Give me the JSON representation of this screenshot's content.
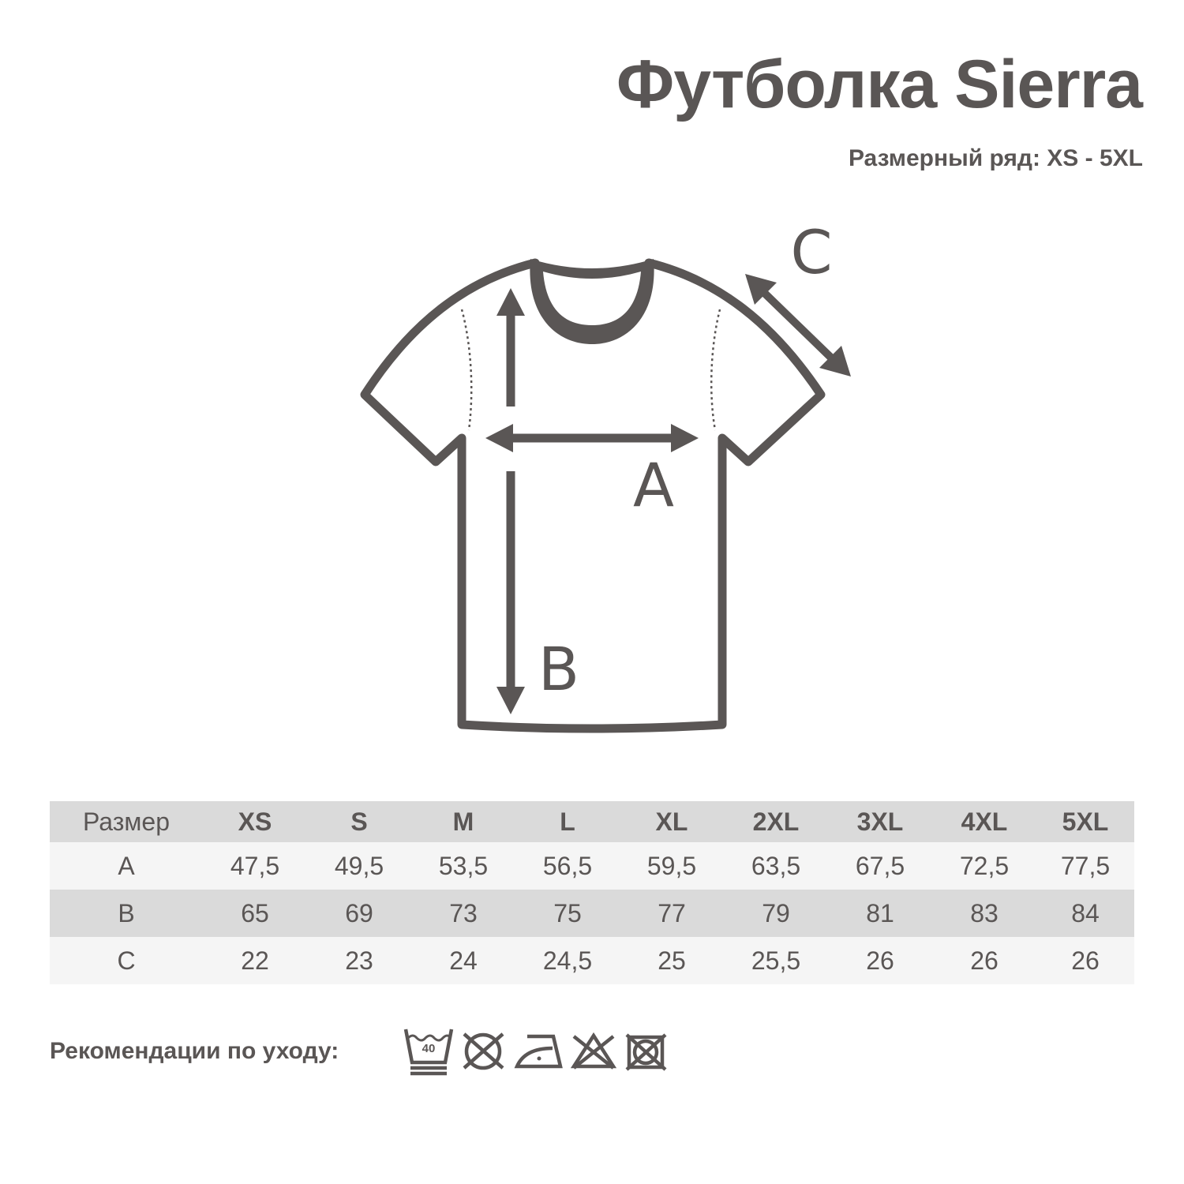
{
  "title": "Футболка Sierra",
  "subtitle": "Размерный ряд: XS - 5XL",
  "diagram": {
    "label_a": "A",
    "label_b": "B",
    "label_c": "C"
  },
  "table": {
    "header": [
      "Размер",
      "XS",
      "S",
      "M",
      "L",
      "XL",
      "2XL",
      "3XL",
      "4XL",
      "5XL"
    ],
    "rows": [
      [
        "A",
        "47,5",
        "49,5",
        "53,5",
        "56,5",
        "59,5",
        "63,5",
        "67,5",
        "72,5",
        "77,5"
      ],
      [
        "B",
        "65",
        "69",
        "73",
        "75",
        "77",
        "79",
        "81",
        "83",
        "84"
      ],
      [
        "C",
        "22",
        "23",
        "24",
        "24,5",
        "25",
        "25,5",
        "26",
        "26",
        "26"
      ]
    ]
  },
  "care": {
    "label": "Рекомендации по уходу:",
    "wash_temp": "40",
    "icons": [
      "wash-40-icon",
      "no-tumble-dry-icon",
      "iron-low-icon",
      "no-bleach-icon",
      "no-dry-icon"
    ]
  },
  "colors": {
    "ink": "#5a5655",
    "header_bg": "#dadada",
    "row_light": "#f5f5f5"
  }
}
